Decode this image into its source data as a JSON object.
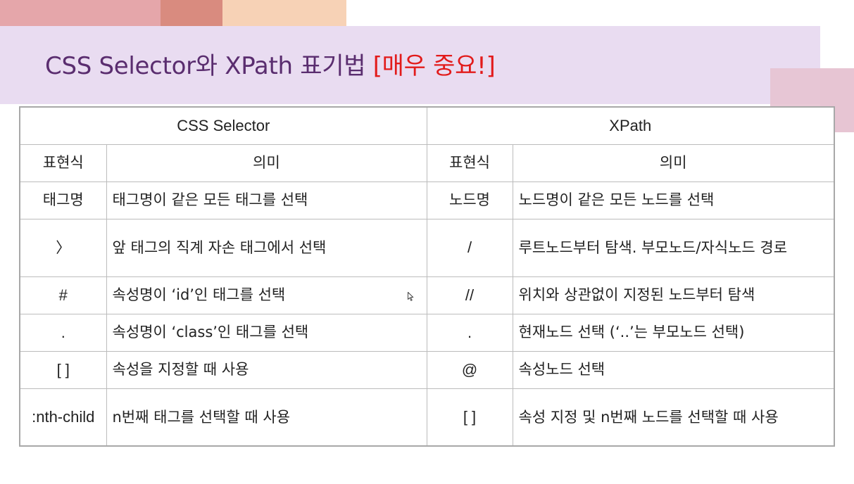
{
  "slide": {
    "title_main": "CSS Selector와 XPath 표기법 ",
    "title_emphasis": "[매우 중요!]",
    "colors": {
      "title": "#5a2d6f",
      "emphasis": "#e21b1b",
      "band": "#e9dcf1"
    }
  },
  "table": {
    "group_headers": [
      "CSS Selector",
      "XPath"
    ],
    "column_headers": [
      "표현식",
      "의미",
      "표현식",
      "의미"
    ],
    "rows": [
      {
        "css_expr": "태그명",
        "css_meaning": "태그명이 같은 모든 태그를 선택",
        "xpath_expr": "노드명",
        "xpath_meaning": "노드명이 같은 모든 노드를 선택"
      },
      {
        "css_expr": "〉",
        "css_meaning": "앞 태그의 직계 자손 태그에서 선택",
        "xpath_expr": "/",
        "xpath_meaning": "루트노드부터 탐색. 부모노드/자식노드 경로"
      },
      {
        "css_expr": "#",
        "css_meaning": "속성명이 ‘id’인 태그를 선택",
        "xpath_expr": "//",
        "xpath_meaning": "위치와 상관없이 지정된 노드부터 탐색"
      },
      {
        "css_expr": ".",
        "css_meaning": "속성명이 ‘class’인 태그를 선택",
        "xpath_expr": ".",
        "xpath_meaning": "현재노드 선택 (‘..’는 부모노드 선택)"
      },
      {
        "css_expr": "[ ]",
        "css_meaning": "속성을 지정할 때 사용",
        "xpath_expr": "@",
        "xpath_meaning": "속성노드 선택"
      },
      {
        "css_expr": ":nth-child",
        "css_meaning": "n번째 태그를 선택할 때 사용",
        "xpath_expr": "[ ]",
        "xpath_meaning": "속성 지정 및 n번째 노드를 선택할 때 사용"
      }
    ]
  }
}
